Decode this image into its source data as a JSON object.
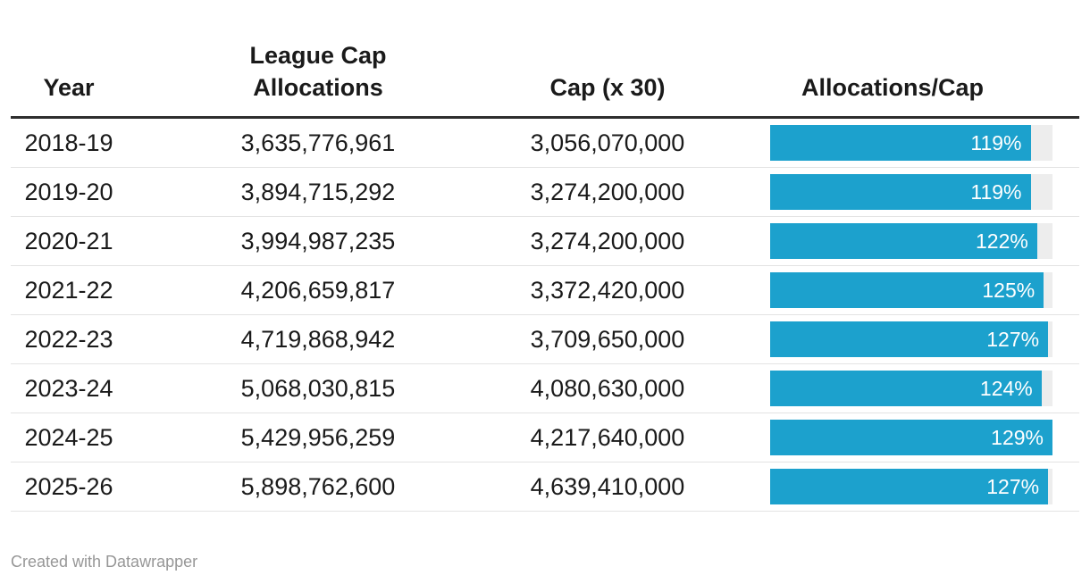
{
  "theme": {
    "bar_color": "#1ca1cd",
    "bar_track_color": "#ededed",
    "header_rule_color": "#2e2e2e",
    "row_divider_color": "#e3e3e3",
    "text_color": "#1a1a1a",
    "footer_color": "#979797",
    "background": "#ffffff",
    "bar_label_color": "#ffffff"
  },
  "header": {
    "col_year": "Year",
    "col_allocations": "League Cap Allocations",
    "col_cap": "Cap (x 30)",
    "col_ratio": "Allocations/Cap"
  },
  "table": {
    "rows": [
      {
        "year": "2018-19",
        "allocations": "3,635,776,961",
        "cap": "3,056,070,000",
        "ratio_label": "119%",
        "ratio_pct": 119
      },
      {
        "year": "2019-20",
        "allocations": "3,894,715,292",
        "cap": "3,274,200,000",
        "ratio_label": "119%",
        "ratio_pct": 119
      },
      {
        "year": "2020-21",
        "allocations": "3,994,987,235",
        "cap": "3,274,200,000",
        "ratio_label": "122%",
        "ratio_pct": 122
      },
      {
        "year": "2021-22",
        "allocations": "4,206,659,817",
        "cap": "3,372,420,000",
        "ratio_label": "125%",
        "ratio_pct": 125
      },
      {
        "year": "2022-23",
        "allocations": "4,719,868,942",
        "cap": "3,709,650,000",
        "ratio_label": "127%",
        "ratio_pct": 127
      },
      {
        "year": "2023-24",
        "allocations": "5,068,030,815",
        "cap": "4,080,630,000",
        "ratio_label": "124%",
        "ratio_pct": 124
      },
      {
        "year": "2024-25",
        "allocations": "5,429,956,259",
        "cap": "4,217,640,000",
        "ratio_label": "129%",
        "ratio_pct": 129
      },
      {
        "year": "2025-26",
        "allocations": "5,898,762,600",
        "cap": "4,639,410,000",
        "ratio_label": "127%",
        "ratio_pct": 127
      }
    ]
  },
  "footer": {
    "credit": "Created with Datawrapper"
  },
  "chart_data": {
    "type": "table",
    "columns": [
      "Year",
      "League Cap Allocations",
      "Cap (x 30)",
      "Allocations/Cap"
    ],
    "rows": [
      [
        "2018-19",
        3635776961,
        3056070000,
        119
      ],
      [
        "2019-20",
        3894715292,
        3274200000,
        119
      ],
      [
        "2020-21",
        3994987235,
        3274200000,
        122
      ],
      [
        "2021-22",
        4206659817,
        3372420000,
        125
      ],
      [
        "2022-23",
        4719868942,
        3709650000,
        127
      ],
      [
        "2023-24",
        5068030815,
        4080630000,
        124
      ],
      [
        "2024-25",
        5429956259,
        4217640000,
        129
      ],
      [
        "2025-26",
        5898762600,
        4639410000,
        127
      ]
    ],
    "bar_column": "Allocations/Cap",
    "bar_values_pct": [
      119,
      119,
      122,
      125,
      127,
      124,
      129,
      127
    ],
    "bar_scale": {
      "min": 0,
      "max": 129
    },
    "bar_type": "horizontal-bar-in-table",
    "legend": "none",
    "grid": "off"
  }
}
